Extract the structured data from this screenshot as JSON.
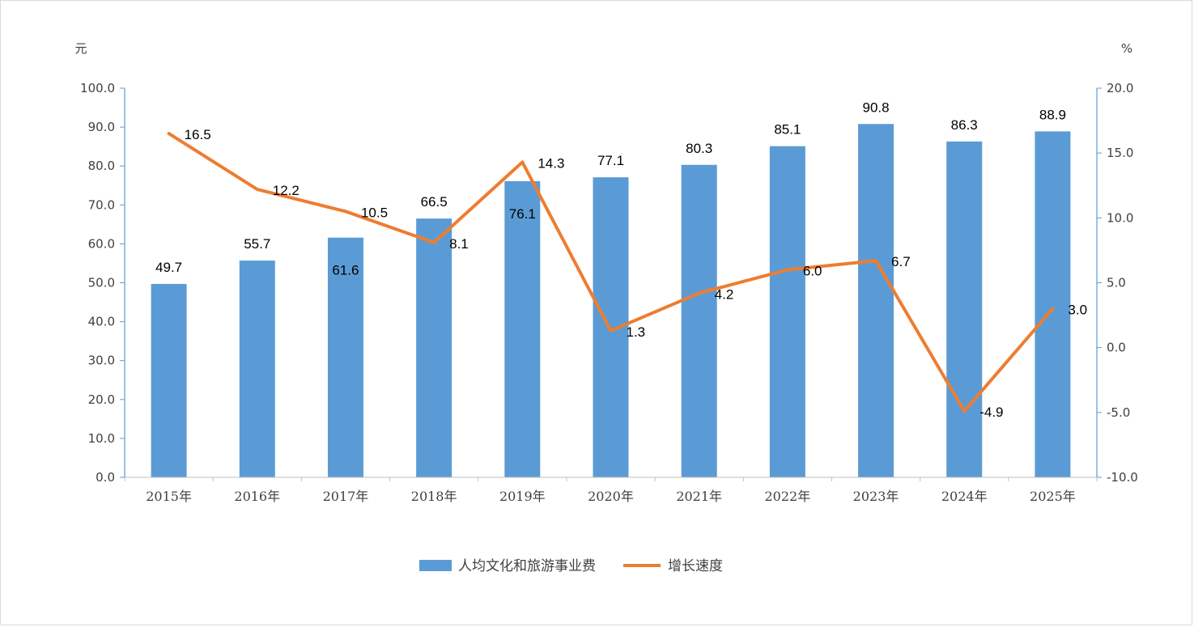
{
  "chart_data": {
    "type": "bar",
    "categories": [
      "2015年",
      "2016年",
      "2017年",
      "2018年",
      "2019年",
      "2020年",
      "2021年",
      "2022年",
      "2023年",
      "2024年",
      "2025年"
    ],
    "series": [
      {
        "name": "人均文化和旅游事业费",
        "type": "bar",
        "axis": "left",
        "color": "#5b9bd5",
        "values": [
          49.7,
          55.7,
          61.6,
          66.5,
          76.1,
          77.1,
          80.3,
          85.1,
          90.8,
          86.3,
          88.9
        ]
      },
      {
        "name": "增长速度",
        "type": "line",
        "axis": "right",
        "color": "#ed7d31",
        "values": [
          16.5,
          12.2,
          10.5,
          8.1,
          14.3,
          1.3,
          4.2,
          6.0,
          6.7,
          -4.9,
          3.0
        ]
      }
    ],
    "left_unit": "元",
    "right_unit": "%",
    "ylim_left": [
      0,
      100
    ],
    "ylim_right": [
      -10,
      20
    ],
    "yticks_left": [
      "0.0",
      "10.0",
      "20.0",
      "30.0",
      "40.0",
      "50.0",
      "60.0",
      "70.0",
      "80.0",
      "90.0",
      "100.0"
    ],
    "yticks_right": [
      "-10.0",
      "-5.0",
      "0.0",
      "5.0",
      "10.0",
      "15.0",
      "20.0"
    ],
    "bar_labels": [
      "49.7",
      "55.7",
      "61.6",
      "66.5",
      "76.1",
      "77.1",
      "80.3",
      "85.1",
      "90.8",
      "86.3",
      "88.9"
    ],
    "line_labels": [
      "16.5",
      "12.2",
      "10.5",
      "8.1",
      "14.3",
      "1.3",
      "4.2",
      "6.0",
      "6.7",
      "-4.9",
      "3.0"
    ],
    "grid": false,
    "legend_position": "bottom"
  }
}
